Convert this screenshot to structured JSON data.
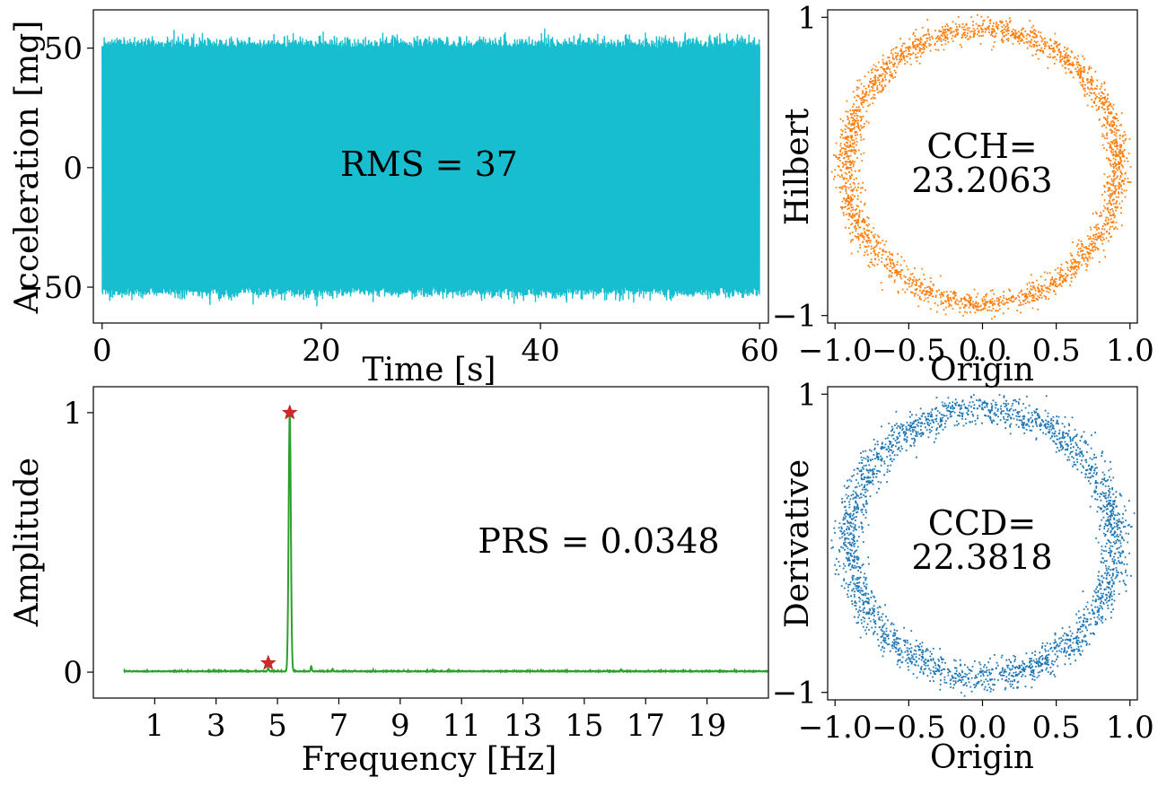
{
  "chart_data": [
    {
      "id": "signal",
      "type": "line",
      "xlabel": "Time [s]",
      "ylabel": "Acceleration [mg]",
      "xlim": [
        -0.8,
        60.8
      ],
      "ylim": [
        -65,
        66
      ],
      "xticks": [
        0,
        20,
        40,
        60
      ],
      "yticks": [
        -50,
        0,
        50
      ],
      "x_range": [
        0,
        60
      ],
      "envelope_amplitude": 50,
      "peak_min": -58,
      "peak_max": 59,
      "annotation": "RMS = 37",
      "color": "#17becf",
      "grid": false
    },
    {
      "id": "hilbert",
      "type": "scatter",
      "xlabel": "Origin",
      "ylabel": "Hilbert",
      "xlim": [
        -1.05,
        1.05
      ],
      "ylim": [
        -1.05,
        1.05
      ],
      "xticks": [
        -1.0,
        -0.5,
        0.0,
        0.5,
        1.0
      ],
      "yticks": [
        -1,
        1
      ],
      "xtick_labels": [
        "−1.0",
        "−0.5",
        "0.0",
        "0.5",
        "1.0"
      ],
      "ytick_labels": [
        "−1",
        "1"
      ],
      "shape": "noisy ring",
      "ring_radius": 0.92,
      "ring_spread": 0.04,
      "annotation_lines": [
        "CCH=",
        "23.2063"
      ],
      "color": "#ff7f0e",
      "grid": false
    },
    {
      "id": "spectrum",
      "type": "line",
      "xlabel": "Frequency [Hz]",
      "ylabel": "Amplitude",
      "xlim": [
        -1,
        21
      ],
      "ylim": [
        -0.1,
        1.1
      ],
      "xticks": [
        1,
        3,
        5,
        7,
        9,
        11,
        13,
        15,
        17,
        19
      ],
      "yticks": [
        0,
        1
      ],
      "x_range": [
        0,
        21
      ],
      "main_peak": {
        "frequency": 5.4,
        "amplitude": 1.0
      },
      "minor_peaks": [
        {
          "frequency": 6.1,
          "amplitude": 0.02
        },
        {
          "frequency": 6.8,
          "amplitude": 0.008
        },
        {
          "frequency": 16.2,
          "amplitude": 0.007
        }
      ],
      "markers": [
        {
          "frequency": 4.7,
          "amplitude": 0.035
        },
        {
          "frequency": 5.4,
          "amplitude": 1.0
        }
      ],
      "annotation": "PRS = 0.0348",
      "color": "#2ca02c",
      "marker_color": "#d62728",
      "grid": false
    },
    {
      "id": "derivative",
      "type": "scatter",
      "xlabel": "Origin",
      "ylabel": "Derivative",
      "xlim": [
        -1.05,
        1.05
      ],
      "ylim": [
        -1.05,
        1.05
      ],
      "xticks": [
        -1.0,
        -0.5,
        0.0,
        0.5,
        1.0
      ],
      "yticks": [
        -1,
        1
      ],
      "xtick_labels": [
        "−1.0",
        "−0.5",
        "0.0",
        "0.5",
        "1.0"
      ],
      "ytick_labels": [
        "−1",
        "1"
      ],
      "shape": "noisy ring",
      "ring_radius": 0.9,
      "ring_spread": 0.05,
      "annotation_lines": [
        "CCD=",
        "22.3818"
      ],
      "color": "#1f77b4",
      "grid": false
    }
  ]
}
